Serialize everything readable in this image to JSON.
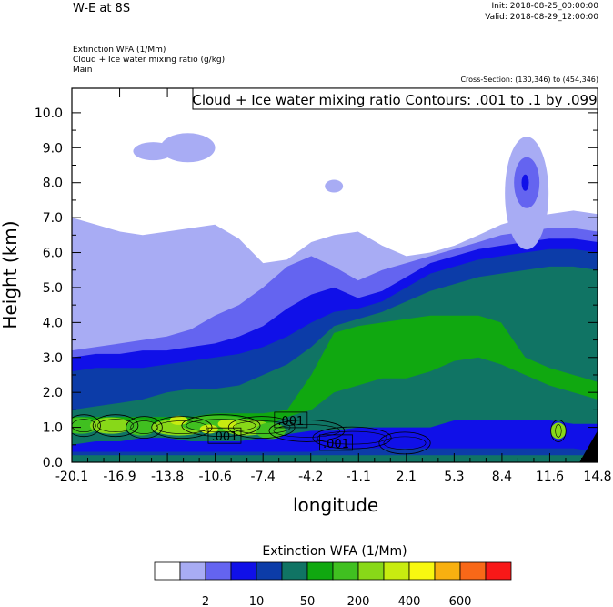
{
  "header": {
    "title": "W-E at 8S",
    "init": "Init: 2018-08-25_00:00:00",
    "valid": "Valid: 2018-08-29_12:00:00",
    "field1": "Extinction WFA   (1/Mm)",
    "field2": "Cloud + Ice water mixing ratio   (g/kg)",
    "field3": "Main",
    "cross_section": "Cross-Section: (130,346) to (454,346)"
  },
  "chart_data": {
    "type": "heatmap",
    "title": "W-E at 8S",
    "xlabel": "longitude",
    "ylabel": "Height (km)",
    "xlim": [
      -20.1,
      14.8
    ],
    "ylim": [
      0,
      10.7
    ],
    "x_ticks": [
      "-20.1",
      "-16.9",
      "-13.8",
      "-10.6",
      "-7.4",
      "-4.2",
      "-1.1",
      "2.1",
      "5.3",
      "8.4",
      "11.6",
      "14.8"
    ],
    "y_ticks": [
      "0.0",
      "1.0",
      "2.0",
      "3.0",
      "4.0",
      "5.0",
      "6.0",
      "7.0",
      "8.0",
      "9.0",
      "10.0"
    ],
    "contour_note": "Cloud + Ice water mixing ratio Contours: .001 to .1 by .099",
    "contour_labels": [
      {
        "text": ".001",
        "x": -10.2,
        "y": 0.75
      },
      {
        "text": ".001",
        "x": -5.8,
        "y": 1.2
      },
      {
        "text": ".001",
        "x": -2.8,
        "y": 0.55
      }
    ],
    "colorbar": {
      "title": "Extinction WFA  (1/Mm)",
      "colors": [
        "#ffffff",
        "#a8acf4",
        "#6464f0",
        "#1010e8",
        "#0c3ca8",
        "#107464",
        "#10a810",
        "#40c020",
        "#88d818",
        "#c8ec10",
        "#f8f810",
        "#f8b010",
        "#f86818",
        "#f81818"
      ],
      "labels": [
        "2",
        "10",
        "50",
        "200",
        "400",
        "600"
      ]
    },
    "bands": {
      "x": [
        -20.1,
        -18.5,
        -16.9,
        -15.4,
        -13.8,
        -12.2,
        -10.6,
        -9.0,
        -7.4,
        -5.8,
        -4.2,
        -2.7,
        -1.1,
        0.5,
        2.1,
        3.7,
        5.3,
        6.9,
        8.4,
        10.0,
        11.6,
        13.2,
        14.8
      ],
      "layers": [
        {
          "color": "#a8acf4",
          "top": [
            7.0,
            6.8,
            6.6,
            6.5,
            6.6,
            6.7,
            6.8,
            6.4,
            5.7,
            5.8,
            6.3,
            6.5,
            6.6,
            6.2,
            5.9,
            6.0,
            6.2,
            6.5,
            6.8,
            7.0,
            7.1,
            7.2,
            7.1
          ]
        },
        {
          "color": "#6464f0",
          "top": [
            3.2,
            3.3,
            3.4,
            3.5,
            3.6,
            3.8,
            4.2,
            4.5,
            5.0,
            5.6,
            5.9,
            5.6,
            5.2,
            5.5,
            5.7,
            5.9,
            6.1,
            6.3,
            6.5,
            6.6,
            6.7,
            6.7,
            6.6
          ]
        },
        {
          "color": "#1010e8",
          "top": [
            3.0,
            3.1,
            3.1,
            3.2,
            3.2,
            3.3,
            3.4,
            3.6,
            3.9,
            4.4,
            4.8,
            5.0,
            4.7,
            4.9,
            5.3,
            5.7,
            5.9,
            6.1,
            6.2,
            6.3,
            6.4,
            6.4,
            6.3
          ]
        },
        {
          "color": "#0c3ca8",
          "top": [
            2.6,
            2.7,
            2.7,
            2.7,
            2.8,
            2.9,
            3.0,
            3.1,
            3.3,
            3.6,
            4.0,
            4.3,
            4.4,
            4.6,
            5.0,
            5.4,
            5.6,
            5.8,
            5.9,
            6.0,
            6.1,
            6.1,
            6.0
          ]
        },
        {
          "color": "#107464",
          "top": [
            1.5,
            1.6,
            1.7,
            1.8,
            2.0,
            2.1,
            2.1,
            2.2,
            2.5,
            2.8,
            3.3,
            3.9,
            4.1,
            4.3,
            4.6,
            4.9,
            5.1,
            5.3,
            5.4,
            5.5,
            5.6,
            5.6,
            5.5
          ]
        },
        {
          "color": "#10a810",
          "top": [
            1.3,
            1.3,
            1.3,
            1.3,
            1.3,
            1.3,
            1.4,
            1.4,
            1.4,
            1.5,
            2.5,
            3.7,
            3.9,
            4.0,
            4.1,
            4.2,
            4.2,
            4.2,
            4.0,
            3.0,
            2.7,
            2.5,
            2.3
          ]
        },
        {
          "color": "#107464",
          "top": [
            1.1,
            1.1,
            1.1,
            1.1,
            1.1,
            1.0,
            1.0,
            1.0,
            1.0,
            1.3,
            1.5,
            2.0,
            2.2,
            2.4,
            2.4,
            2.6,
            2.9,
            3.0,
            2.8,
            2.5,
            2.2,
            2.0,
            1.8
          ]
        },
        {
          "color": "#1010e8",
          "top": [
            0.5,
            0.6,
            0.6,
            0.7,
            0.7,
            0.6,
            0.6,
            0.6,
            0.7,
            0.8,
            0.9,
            0.9,
            1.0,
            1.0,
            1.0,
            1.0,
            1.2,
            1.2,
            1.2,
            1.2,
            1.2,
            1.1,
            1.1
          ]
        },
        {
          "color": "#0c3ca8",
          "top": [
            0.3,
            0.3,
            0.3,
            0.3,
            0.3,
            0.3,
            0.3,
            0.3,
            0.3,
            0.3,
            0.3,
            0.4,
            0.4,
            0.4,
            0.4,
            0.4,
            0.4,
            0.4,
            0.4,
            0.4,
            0.4,
            0.4,
            0.3
          ]
        },
        {
          "color": "#107464",
          "top": [
            0.2,
            0.2,
            0.2,
            0.2,
            0.2,
            0.2,
            0.2,
            0.2,
            0.2,
            0.2,
            0.2,
            0.2,
            0.2,
            0.2,
            0.2,
            0.2,
            0.2,
            0.2,
            0.2,
            0.2,
            0.2,
            0.2,
            0.2
          ]
        }
      ]
    }
  }
}
